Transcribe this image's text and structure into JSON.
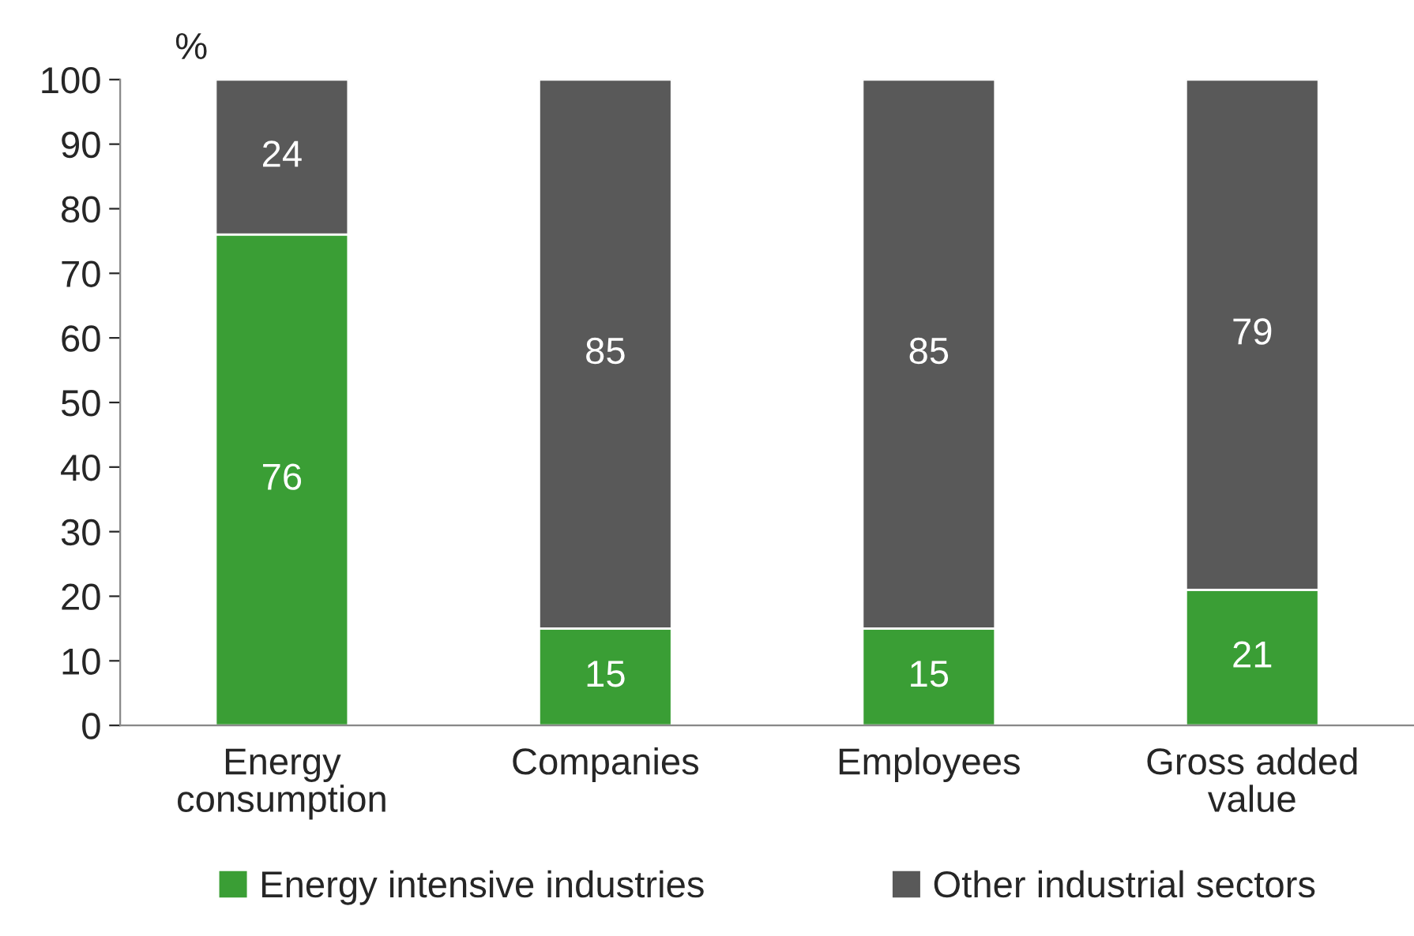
{
  "chart_data": {
    "type": "bar",
    "stacked": true,
    "ylabel": "%",
    "categories": [
      "Energy\nconsumption",
      "Companies",
      "Employees",
      "Gross added\nvalue"
    ],
    "series": [
      {
        "name": "Energy intensive industries",
        "color": "#3a9e35",
        "values": [
          76,
          15,
          15,
          21
        ]
      },
      {
        "name": "Other industrial sectors",
        "color": "#595959",
        "values": [
          24,
          85,
          85,
          79
        ]
      }
    ],
    "ylim": [
      0,
      100
    ],
    "yticks": [
      0,
      10,
      20,
      30,
      40,
      50,
      60,
      70,
      80,
      90,
      100
    ],
    "data_labels": true,
    "grid": false,
    "legend": "bottom"
  }
}
